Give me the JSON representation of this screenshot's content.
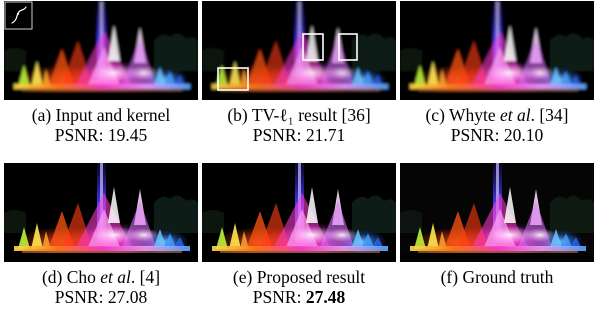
{
  "figure": {
    "panels": [
      {
        "id": "a",
        "caption_pre": "(a) Input and kernel",
        "caption_em": "",
        "caption_post": "",
        "metric_label": "PSNR: ",
        "metric_value": "19.45",
        "best": false,
        "blurred": true,
        "kernel_inset": true,
        "boxes": false
      },
      {
        "id": "b",
        "caption_pre": "(b) TV-ℓ₁ result [36]",
        "caption_em": "",
        "caption_post": "",
        "metric_label": "PSNR: ",
        "metric_value": "21.71",
        "best": false,
        "blurred": true,
        "kernel_inset": false,
        "boxes": true
      },
      {
        "id": "c",
        "caption_pre": "(c) Whyte ",
        "caption_em": "et al",
        "caption_post": ". [34]",
        "metric_label": "PSNR: ",
        "metric_value": "20.10",
        "best": false,
        "blurred": true,
        "kernel_inset": false,
        "boxes": false
      },
      {
        "id": "d",
        "caption_pre": "(d) Cho ",
        "caption_em": "et al",
        "caption_post": ". [4]",
        "metric_label": "PSNR: ",
        "metric_value": "27.08",
        "best": false,
        "blurred": false,
        "kernel_inset": false,
        "boxes": false
      },
      {
        "id": "e",
        "caption_pre": "(e) Proposed result",
        "caption_em": "",
        "caption_post": "",
        "metric_label": "PSNR: ",
        "metric_value": "27.48",
        "best": true,
        "blurred": false,
        "kernel_inset": false,
        "boxes": false
      },
      {
        "id": "f",
        "caption_pre": "(f) Ground truth",
        "caption_em": "",
        "caption_post": "",
        "metric_label": "",
        "metric_value": "",
        "best": false,
        "blurred": false,
        "kernel_inset": false,
        "boxes": false
      }
    ]
  }
}
